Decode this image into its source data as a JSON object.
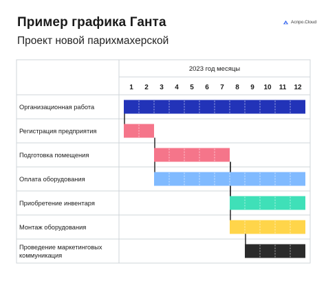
{
  "header": {
    "title": "Пример графика Ганта",
    "subtitle": "Проект новой парихмахерской",
    "logo_text": "Аспро.Cloud",
    "logo_color": "#3b6bf0"
  },
  "chart_data": {
    "type": "gantt",
    "header_label": "2023 год месяцы",
    "months": [
      "1",
      "2",
      "3",
      "4",
      "5",
      "6",
      "7",
      "8",
      "9",
      "10",
      "11",
      "12"
    ],
    "tasks": [
      {
        "label": [
          "Организационная работа"
        ],
        "start": 1,
        "end": 12,
        "color": "#2233b8"
      },
      {
        "label": [
          "Регистрация предприятия"
        ],
        "start": 1,
        "end": 2,
        "color": "#f5758a"
      },
      {
        "label": [
          "Подготовка помещения"
        ],
        "start": 3,
        "end": 7,
        "color": "#f5758a"
      },
      {
        "label": [
          "Оплата оборудования"
        ],
        "start": 3,
        "end": 12,
        "color": "#80baff"
      },
      {
        "label": [
          "Приобретение инвентаря"
        ],
        "start": 8,
        "end": 12,
        "color": "#3fe0b8"
      },
      {
        "label": [
          "Монтаж оборудования"
        ],
        "start": 8,
        "end": 12,
        "color": "#ffd54a"
      },
      {
        "label": [
          "Проведение маркетинговых",
          "коммуникация"
        ],
        "start": 9,
        "end": 12,
        "color": "#2b2b2b"
      }
    ],
    "dependencies": [
      [
        0,
        1
      ],
      [
        1,
        2
      ],
      [
        2,
        3
      ],
      [
        2,
        4
      ],
      [
        2,
        5
      ],
      [
        5,
        6
      ]
    ]
  }
}
